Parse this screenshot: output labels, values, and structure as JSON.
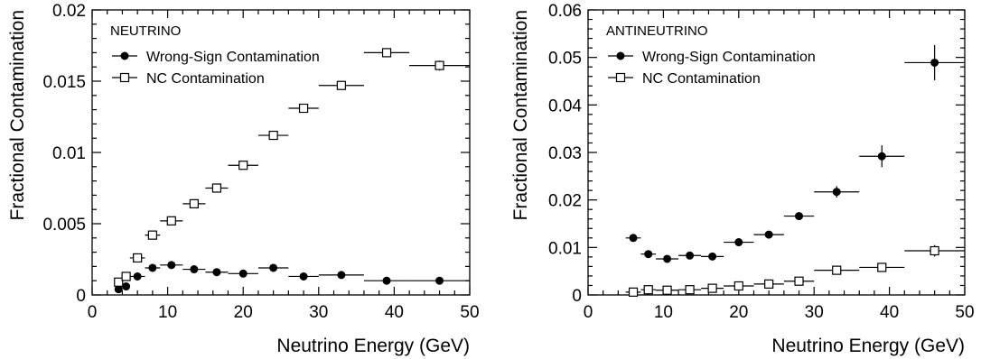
{
  "chart_data": [
    {
      "type": "scatter",
      "panel_label": "NEUTRINO",
      "xlabel": "Neutrino Energy (GeV)",
      "ylabel": "Fractional Contamination",
      "xlim": [
        0,
        50
      ],
      "ylim": [
        0,
        0.02
      ],
      "x_ticks": [
        0,
        10,
        20,
        30,
        40,
        50
      ],
      "x_tick_labels": [
        "0",
        "10",
        "20",
        "30",
        "40",
        "50"
      ],
      "y_ticks": [
        0,
        0.005,
        0.01,
        0.015,
        0.02
      ],
      "y_tick_labels": [
        "0",
        "0.005",
        "0.01",
        "0.015",
        "0.02"
      ],
      "legend_position": "top-left",
      "grid": false,
      "series": [
        {
          "name": "Wrong-Sign Contamination",
          "marker": "filled-circle",
          "points": [
            {
              "x": 3.5,
              "y": 0.0004,
              "xerr": 0.5,
              "yerr": 5e-05
            },
            {
              "x": 4.5,
              "y": 0.0006,
              "xerr": 0.5,
              "yerr": 5e-05
            },
            {
              "x": 6,
              "y": 0.0013,
              "xerr": 1,
              "yerr": 5e-05
            },
            {
              "x": 8,
              "y": 0.0019,
              "xerr": 1,
              "yerr": 5e-05
            },
            {
              "x": 10.5,
              "y": 0.0021,
              "xerr": 1.5,
              "yerr": 5e-05
            },
            {
              "x": 13.5,
              "y": 0.0018,
              "xerr": 1.5,
              "yerr": 5e-05
            },
            {
              "x": 16.5,
              "y": 0.0016,
              "xerr": 1.5,
              "yerr": 5e-05
            },
            {
              "x": 20,
              "y": 0.0015,
              "xerr": 2,
              "yerr": 5e-05
            },
            {
              "x": 24,
              "y": 0.0019,
              "xerr": 2,
              "yerr": 5e-05
            },
            {
              "x": 28,
              "y": 0.0013,
              "xerr": 2,
              "yerr": 5e-05
            },
            {
              "x": 33,
              "y": 0.0014,
              "xerr": 3,
              "yerr": 5e-05
            },
            {
              "x": 39,
              "y": 0.001,
              "xerr": 3,
              "yerr": 5e-05
            },
            {
              "x": 46,
              "y": 0.001,
              "xerr": 4,
              "yerr": 5e-05
            }
          ]
        },
        {
          "name": "NC Contamination",
          "marker": "open-square",
          "points": [
            {
              "x": 3.5,
              "y": 0.0009,
              "xerr": 0.5,
              "yerr": 5e-05
            },
            {
              "x": 4.5,
              "y": 0.0013,
              "xerr": 0.5,
              "yerr": 5e-05
            },
            {
              "x": 6,
              "y": 0.0026,
              "xerr": 1,
              "yerr": 8e-05
            },
            {
              "x": 8,
              "y": 0.0042,
              "xerr": 1,
              "yerr": 0.0001
            },
            {
              "x": 10.5,
              "y": 0.0052,
              "xerr": 1.5,
              "yerr": 0.0001
            },
            {
              "x": 13.5,
              "y": 0.0064,
              "xerr": 1.5,
              "yerr": 0.0001
            },
            {
              "x": 16.5,
              "y": 0.0075,
              "xerr": 1.5,
              "yerr": 0.0001
            },
            {
              "x": 20,
              "y": 0.0091,
              "xerr": 2,
              "yerr": 0.0001
            },
            {
              "x": 24,
              "y": 0.0112,
              "xerr": 2,
              "yerr": 0.0001
            },
            {
              "x": 28,
              "y": 0.0131,
              "xerr": 2,
              "yerr": 0.00015
            },
            {
              "x": 33,
              "y": 0.0147,
              "xerr": 3,
              "yerr": 0.00015
            },
            {
              "x": 39,
              "y": 0.017,
              "xerr": 3,
              "yerr": 0.00025
            },
            {
              "x": 46,
              "y": 0.0161,
              "xerr": 4,
              "yerr": 0.00035
            }
          ]
        }
      ]
    },
    {
      "type": "scatter",
      "panel_label": "ANTINEUTRINO",
      "xlabel": "Neutrino Energy (GeV)",
      "ylabel": "Fractional Contamination",
      "xlim": [
        0,
        50
      ],
      "ylim": [
        0,
        0.06
      ],
      "x_ticks": [
        0,
        10,
        20,
        30,
        40,
        50
      ],
      "x_tick_labels": [
        "0",
        "10",
        "20",
        "30",
        "40",
        "50"
      ],
      "y_ticks": [
        0,
        0.01,
        0.02,
        0.03,
        0.04,
        0.05,
        0.06
      ],
      "y_tick_labels": [
        "0",
        "0.01",
        "0.02",
        "0.03",
        "0.04",
        "0.05",
        "0.06"
      ],
      "legend_position": "top-left",
      "grid": false,
      "series": [
        {
          "name": "Wrong-Sign Contamination",
          "marker": "filled-circle",
          "points": [
            {
              "x": 6,
              "y": 0.012,
              "xerr": 1,
              "yerr": 0.0004
            },
            {
              "x": 8,
              "y": 0.0086,
              "xerr": 1,
              "yerr": 0.0004
            },
            {
              "x": 10.5,
              "y": 0.0076,
              "xerr": 1.5,
              "yerr": 0.0004
            },
            {
              "x": 13.5,
              "y": 0.0083,
              "xerr": 1.5,
              "yerr": 0.0004
            },
            {
              "x": 16.5,
              "y": 0.0081,
              "xerr": 1.5,
              "yerr": 0.0004
            },
            {
              "x": 20,
              "y": 0.0111,
              "xerr": 2,
              "yerr": 0.0004
            },
            {
              "x": 24,
              "y": 0.0127,
              "xerr": 2,
              "yerr": 0.0004
            },
            {
              "x": 28,
              "y": 0.0166,
              "xerr": 2,
              "yerr": 0.0008
            },
            {
              "x": 33,
              "y": 0.0217,
              "xerr": 3,
              "yerr": 0.0012
            },
            {
              "x": 39,
              "y": 0.0292,
              "xerr": 3,
              "yerr": 0.0023
            },
            {
              "x": 46,
              "y": 0.0489,
              "xerr": 4,
              "yerr": 0.0037
            }
          ]
        },
        {
          "name": "NC Contamination",
          "marker": "open-square",
          "points": [
            {
              "x": 6,
              "y": 0.0006,
              "xerr": 1,
              "yerr": 0.0003
            },
            {
              "x": 8,
              "y": 0.0011,
              "xerr": 1,
              "yerr": 0.0003
            },
            {
              "x": 10.5,
              "y": 0.001,
              "xerr": 1.5,
              "yerr": 0.0003
            },
            {
              "x": 13.5,
              "y": 0.0011,
              "xerr": 1.5,
              "yerr": 0.0003
            },
            {
              "x": 16.5,
              "y": 0.0014,
              "xerr": 1.5,
              "yerr": 0.0003
            },
            {
              "x": 20,
              "y": 0.0019,
              "xerr": 2,
              "yerr": 0.0003
            },
            {
              "x": 24,
              "y": 0.0023,
              "xerr": 2,
              "yerr": 0.0003
            },
            {
              "x": 28,
              "y": 0.0029,
              "xerr": 2,
              "yerr": 0.0004
            },
            {
              "x": 33,
              "y": 0.0052,
              "xerr": 3,
              "yerr": 0.0005
            },
            {
              "x": 39,
              "y": 0.0058,
              "xerr": 3,
              "yerr": 0.0006
            },
            {
              "x": 46,
              "y": 0.0093,
              "xerr": 4,
              "yerr": 0.0012
            }
          ]
        }
      ]
    }
  ]
}
